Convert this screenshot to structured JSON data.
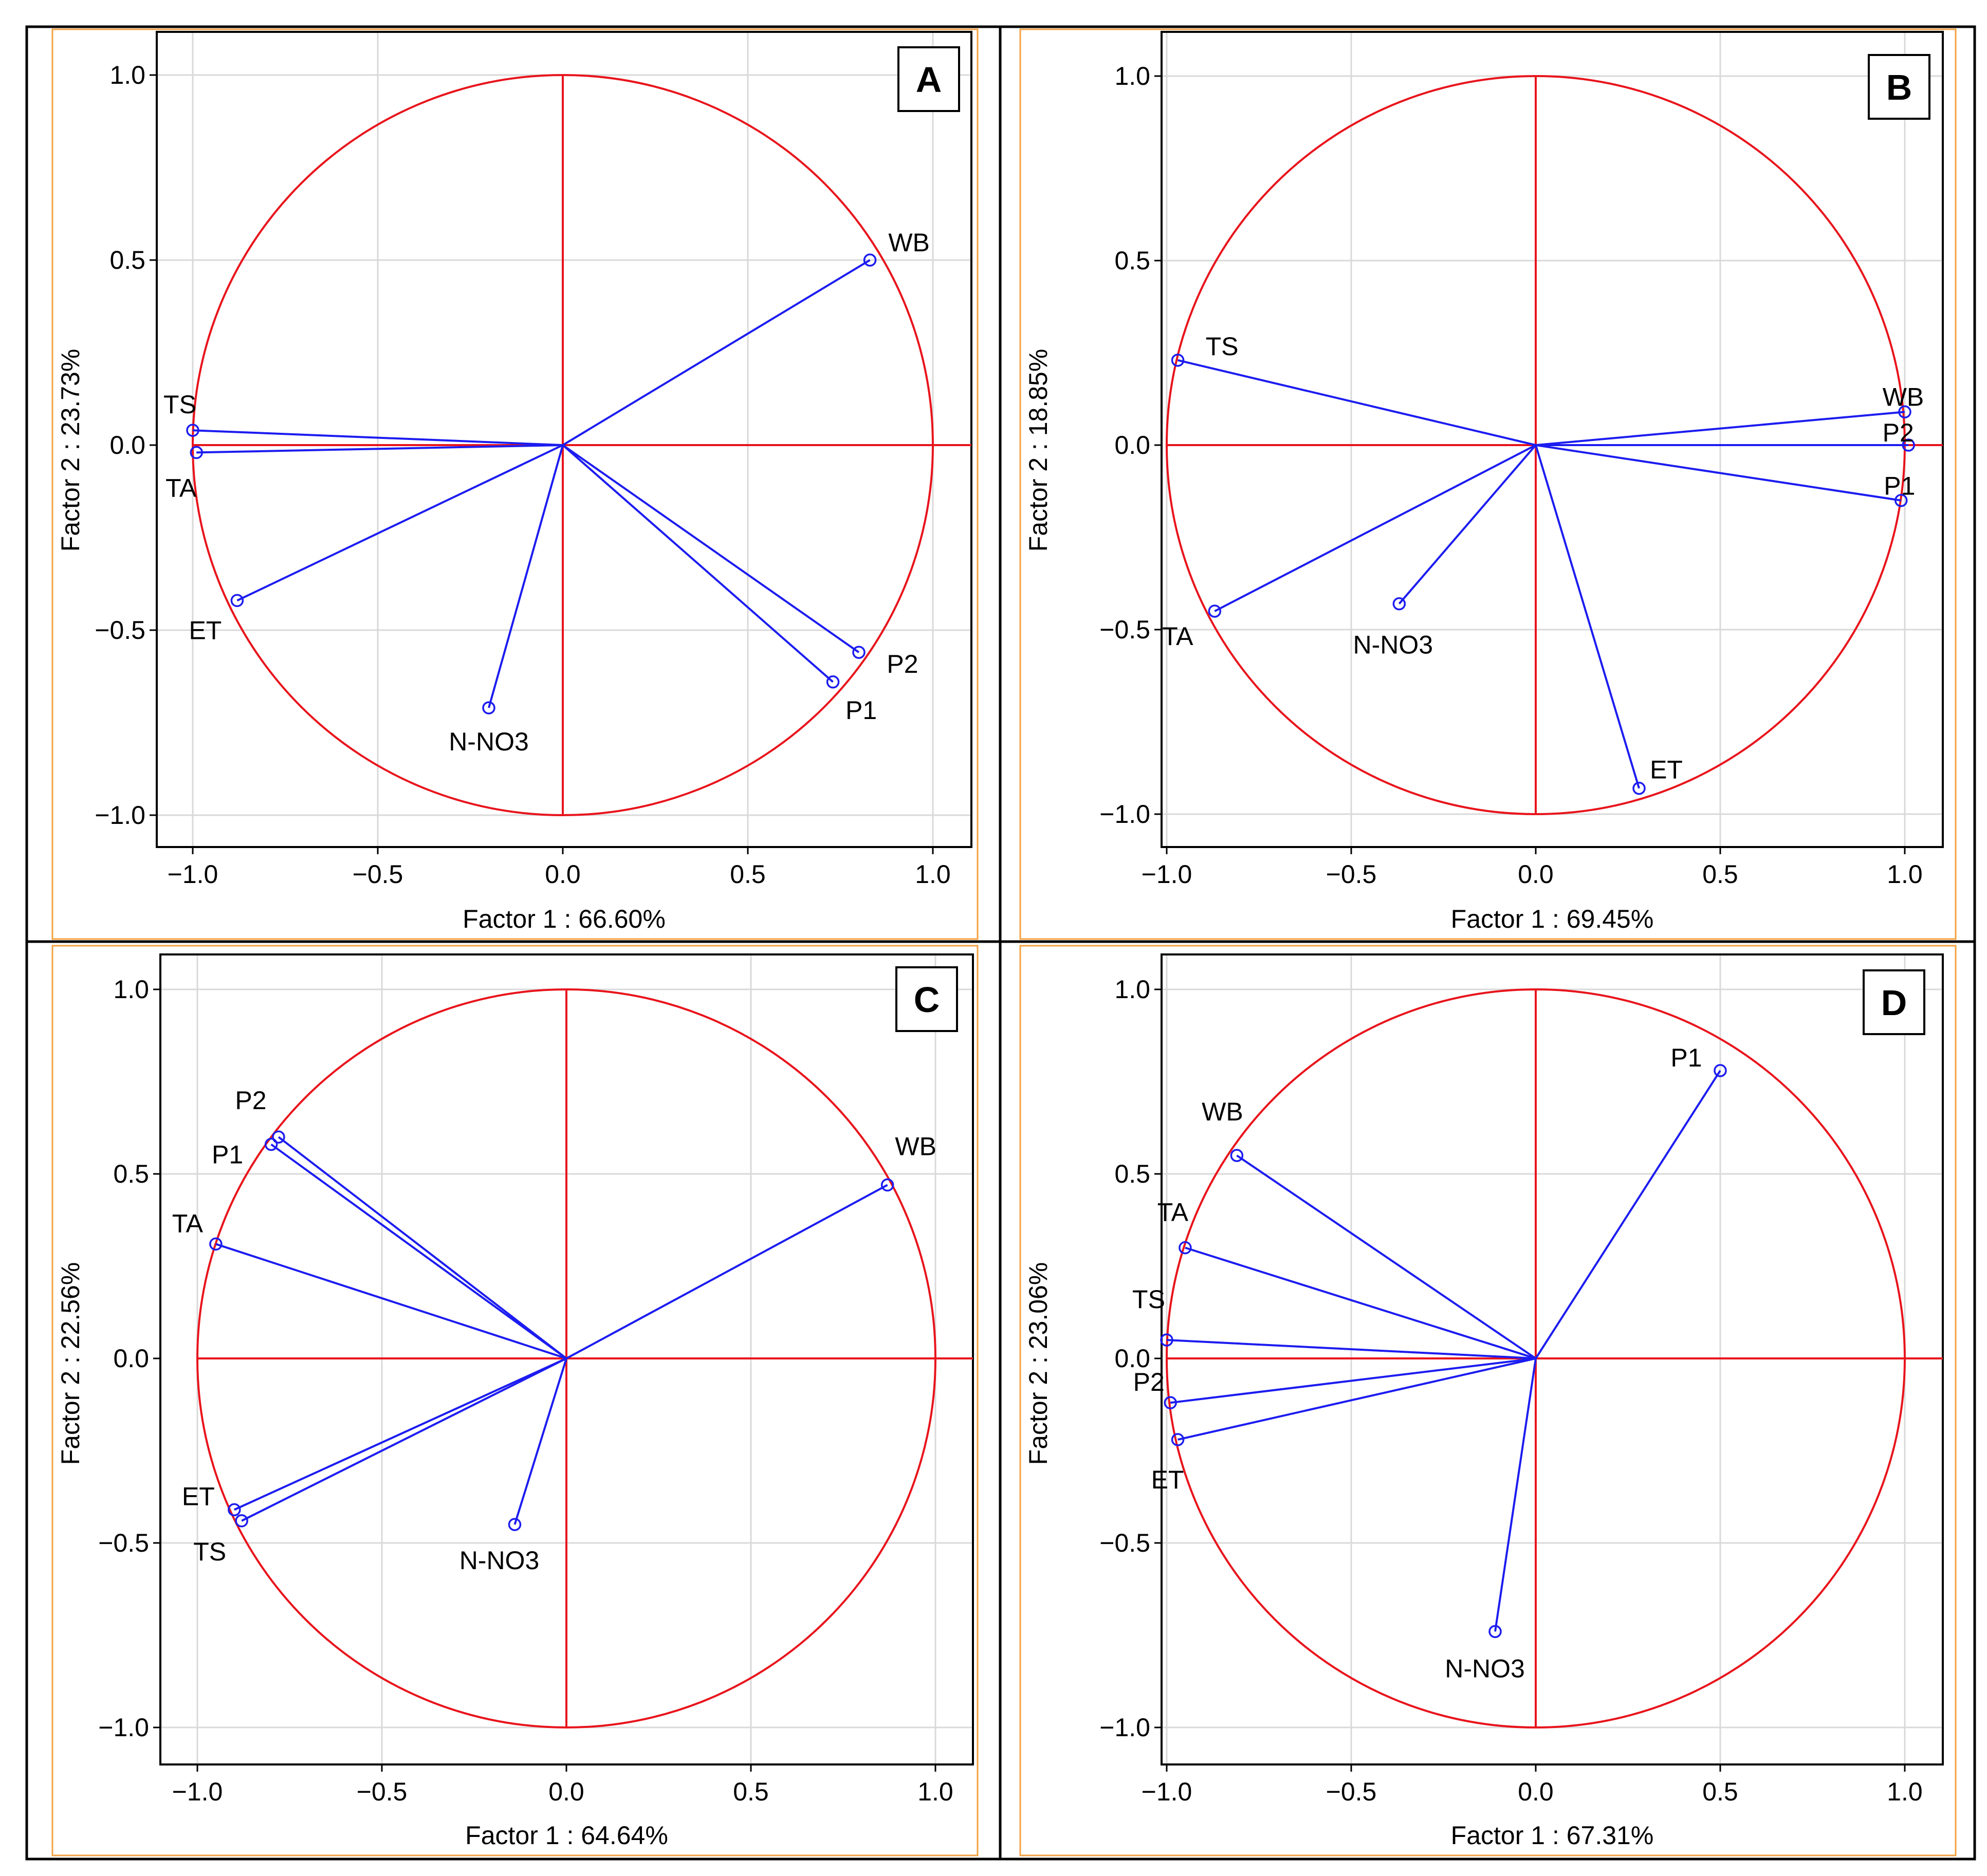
{
  "colors": {
    "circle": "#e8141c",
    "vector": "#1c1cf0",
    "grid": "#d9d9d9",
    "frame": "#000000",
    "panel_border": "#f5a142"
  },
  "chart_data": [
    {
      "type": "scatter",
      "panel_label": "A",
      "xlabel": "Factor 1 : 66.60%",
      "ylabel": "Factor 2 : 23.73%",
      "xlim": [
        -1.1,
        1.1
      ],
      "ylim": [
        -1.1,
        1.1
      ],
      "x_ticks": [
        "−1.0",
        "−0.5",
        "0.0",
        "0.5",
        "1.0"
      ],
      "y_ticks": [
        "1.0",
        "0.5",
        "0.0",
        "−0.5",
        "−1.0"
      ],
      "grid": true,
      "points": [
        {
          "label": "WB",
          "x": 0.83,
          "y": 0.5
        },
        {
          "label": "TS",
          "x": -1.0,
          "y": 0.04
        },
        {
          "label": "TA",
          "x": -0.99,
          "y": -0.02
        },
        {
          "label": "ET",
          "x": -0.88,
          "y": -0.42
        },
        {
          "label": "N-NO3",
          "x": -0.2,
          "y": -0.71
        },
        {
          "label": "P2",
          "x": 0.8,
          "y": -0.56
        },
        {
          "label": "P1",
          "x": 0.73,
          "y": -0.64
        }
      ]
    },
    {
      "type": "scatter",
      "panel_label": "B",
      "xlabel": "Factor 1 : 69.45%",
      "ylabel": "Factor 2 : 18.85%",
      "xlim": [
        -1.1,
        1.1
      ],
      "ylim": [
        -1.1,
        1.1
      ],
      "x_ticks": [
        "−1.0",
        "−0.5",
        "0.0",
        "0.5",
        "1.0"
      ],
      "y_ticks": [
        "1.0",
        "0.5",
        "0.0",
        "−0.5",
        "−1.0"
      ],
      "grid": true,
      "points": [
        {
          "label": "TS",
          "x": -0.97,
          "y": 0.23
        },
        {
          "label": "WB",
          "x": 1.0,
          "y": 0.09
        },
        {
          "label": "P2",
          "x": 1.01,
          "y": 0.0
        },
        {
          "label": "P1",
          "x": 0.99,
          "y": -0.15
        },
        {
          "label": "TA",
          "x": -0.87,
          "y": -0.45
        },
        {
          "label": "N-NO3",
          "x": -0.37,
          "y": -0.43
        },
        {
          "label": "ET",
          "x": 0.28,
          "y": -0.93
        }
      ]
    },
    {
      "type": "scatter",
      "panel_label": "C",
      "xlabel": "Factor 1 : 64.64%",
      "ylabel": "Factor 2 : 22.56%",
      "xlim": [
        -1.1,
        1.1
      ],
      "ylim": [
        -1.1,
        1.1
      ],
      "x_ticks": [
        "−1.0",
        "−0.5",
        "0.0",
        "0.5",
        "1.0"
      ],
      "y_ticks": [
        "1.0",
        "0.5",
        "0.0",
        "−0.5",
        "−1.0"
      ],
      "grid": true,
      "points": [
        {
          "label": "P2",
          "x": -0.78,
          "y": 0.6
        },
        {
          "label": "P1",
          "x": -0.8,
          "y": 0.58
        },
        {
          "label": "TA",
          "x": -0.95,
          "y": 0.31
        },
        {
          "label": "WB",
          "x": 0.87,
          "y": 0.47
        },
        {
          "label": "ET",
          "x": -0.9,
          "y": -0.41
        },
        {
          "label": "TS",
          "x": -0.88,
          "y": -0.44
        },
        {
          "label": "N-NO3",
          "x": -0.14,
          "y": -0.45
        }
      ]
    },
    {
      "type": "scatter",
      "panel_label": "D",
      "xlabel": "Factor 1 : 67.31%",
      "ylabel": "Factor 2 : 23.06%",
      "xlim": [
        -1.1,
        1.1
      ],
      "ylim": [
        -1.1,
        1.1
      ],
      "x_ticks": [
        "−1.0",
        "−0.5",
        "0.0",
        "0.5",
        "1.0"
      ],
      "y_ticks": [
        "1.0",
        "0.5",
        "0.0",
        "−0.5",
        "−1.0"
      ],
      "grid": true,
      "points": [
        {
          "label": "P1",
          "x": 0.5,
          "y": 0.78
        },
        {
          "label": "WB",
          "x": -0.81,
          "y": 0.55
        },
        {
          "label": "TA",
          "x": -0.95,
          "y": 0.3
        },
        {
          "label": "TS",
          "x": -1.0,
          "y": 0.05
        },
        {
          "label": "P2",
          "x": -0.99,
          "y": -0.12
        },
        {
          "label": "ET",
          "x": -0.97,
          "y": -0.22
        },
        {
          "label": "N-NO3",
          "x": -0.11,
          "y": -0.74
        }
      ]
    }
  ]
}
